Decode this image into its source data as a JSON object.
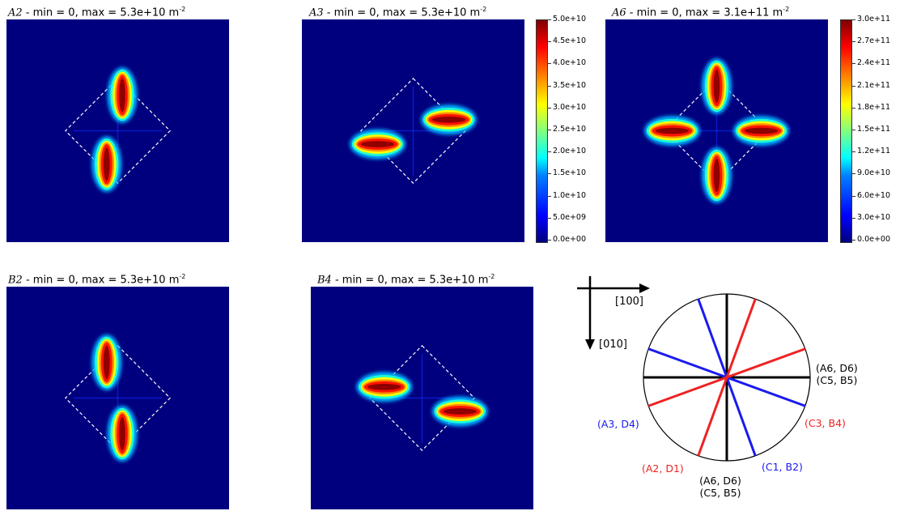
{
  "chart_data": [
    {
      "type": "heatmap",
      "panel": "A2",
      "title": {
        "label": "A2",
        "text": " - min = 0, max = 5.3e+10 m",
        "unit_exp": "-2"
      },
      "min": 0,
      "max": 53000000000.0,
      "hotspots": [
        {
          "x": 0.52,
          "y": 0.34,
          "orientation": "vertical",
          "intensity": 1.0
        },
        {
          "x": 0.45,
          "y": 0.65,
          "orientation": "vertical",
          "intensity": 1.0
        }
      ]
    },
    {
      "type": "heatmap",
      "panel": "A3",
      "title": {
        "label": "A3",
        "text": " - min = 0, max = 5.3e+10 m",
        "unit_exp": "-2"
      },
      "min": 0,
      "max": 53000000000.0,
      "colorbar": [
        "5.0e+10",
        "4.5e+10",
        "4.0e+10",
        "3.5e+10",
        "3.0e+10",
        "2.5e+10",
        "2.0e+10",
        "1.5e+10",
        "1.0e+10",
        "5.0e+09",
        "0.0e+00"
      ],
      "hotspots": [
        {
          "x": 0.66,
          "y": 0.45,
          "orientation": "horizontal",
          "intensity": 1.0
        },
        {
          "x": 0.34,
          "y": 0.56,
          "orientation": "horizontal",
          "intensity": 1.0
        }
      ]
    },
    {
      "type": "heatmap",
      "panel": "A6",
      "title": {
        "label": "A6",
        "text": " - min = 0, max = 3.1e+11 m",
        "unit_exp": "-2"
      },
      "min": 0,
      "max": 310000000000.0,
      "colorbar": [
        "3.0e+11",
        "2.7e+11",
        "2.4e+11",
        "2.1e+11",
        "1.8e+11",
        "1.5e+11",
        "1.2e+11",
        "9.0e+10",
        "6.0e+10",
        "3.0e+10",
        "0.0e+00"
      ],
      "hotspots": [
        {
          "x": 0.5,
          "y": 0.3,
          "orientation": "vertical",
          "intensity": 1.0
        },
        {
          "x": 0.5,
          "y": 0.7,
          "orientation": "vertical",
          "intensity": 1.0
        },
        {
          "x": 0.3,
          "y": 0.5,
          "orientation": "horizontal",
          "intensity": 1.0
        },
        {
          "x": 0.7,
          "y": 0.5,
          "orientation": "horizontal",
          "intensity": 1.0
        }
      ]
    },
    {
      "type": "heatmap",
      "panel": "B2",
      "title": {
        "label": "B2",
        "text": " - min = 0, max = 5.3e+10 m",
        "unit_exp": "-2"
      },
      "min": 0,
      "max": 53000000000.0,
      "hotspots": [
        {
          "x": 0.45,
          "y": 0.34,
          "orientation": "vertical",
          "intensity": 1.0
        },
        {
          "x": 0.52,
          "y": 0.66,
          "orientation": "vertical",
          "intensity": 1.0
        }
      ]
    },
    {
      "type": "heatmap",
      "panel": "B4",
      "title": {
        "label": "B4",
        "text": " - min = 0, max = 5.3e+10 m",
        "unit_exp": "-2"
      },
      "min": 0,
      "max": 53000000000.0,
      "hotspots": [
        {
          "x": 0.33,
          "y": 0.45,
          "orientation": "horizontal",
          "intensity": 1.0
        },
        {
          "x": 0.67,
          "y": 0.56,
          "orientation": "horizontal",
          "intensity": 1.0
        }
      ]
    }
  ],
  "legend": {
    "axis_x": "[100]",
    "axis_y": "[010]",
    "labels": {
      "right_line1": "(A6, D6)",
      "right_line2": "(C5, B5)",
      "bottom_line1": "(A6, D6)",
      "bottom_line2": "(C5, B5)",
      "a3d4": "(A3, D4)",
      "c3b4": "(C3, B4)",
      "a2d1": "(A2, D1)",
      "c1b2": "(C1, B2)"
    },
    "colors": {
      "black": "#000000",
      "red": "#ee2222",
      "blue": "#1a1aee"
    },
    "lines": [
      {
        "angle_deg": 0,
        "color": "black"
      },
      {
        "angle_deg": 90,
        "color": "black"
      },
      {
        "angle_deg": 20,
        "color": "blue"
      },
      {
        "angle_deg": 70,
        "color": "blue"
      },
      {
        "angle_deg": -20,
        "color": "red"
      },
      {
        "angle_deg": -70,
        "color": "red"
      }
    ]
  }
}
